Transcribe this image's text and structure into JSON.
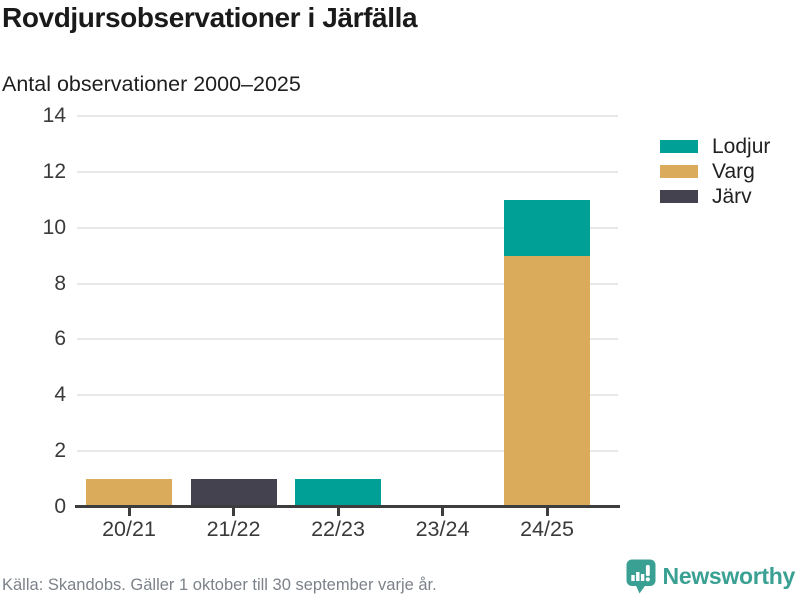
{
  "header": {
    "title": "Rovdjursobservationer i Järfälla",
    "subtitle": "Antal observationer 2000–2025"
  },
  "chart_data": {
    "type": "bar",
    "stacked": true,
    "title": "Rovdjursobservationer i Järfälla",
    "subtitle": "Antal observationer 2000–2025",
    "categories": [
      "20/21",
      "21/22",
      "22/23",
      "23/24",
      "24/25"
    ],
    "series": [
      {
        "name": "Lodjur",
        "color": "#00a096",
        "values": [
          0,
          0,
          1,
          0,
          2
        ]
      },
      {
        "name": "Varg",
        "color": "#d9ab5a",
        "values": [
          1,
          0,
          0,
          0,
          9
        ]
      },
      {
        "name": "Järv",
        "color": "#454250",
        "values": [
          0,
          1,
          0,
          0,
          0
        ]
      }
    ],
    "stack_order": [
      "Varg",
      "Järv",
      "Lodjur"
    ],
    "totals": [
      1,
      1,
      1,
      0,
      11
    ],
    "xlabel": "",
    "ylabel": "",
    "ylim": [
      0,
      14
    ],
    "yticks": [
      0,
      2,
      4,
      6,
      8,
      10,
      12,
      14
    ],
    "grid": "horizontal",
    "legend_position": "right"
  },
  "footer": {
    "source": "Källa: Skandobs. Gäller 1 oktober till 30 september varje år.",
    "brand": "Newsworthy"
  },
  "colors": {
    "lodjur_teal": "#00a096",
    "varg_gold": "#d9ab5a",
    "jarv_slate": "#454250",
    "brand_teal": "#3aa093",
    "axis": "#3d3d3d",
    "grid": "#e8e8e8",
    "text_dark": "#1a1a1a",
    "text_tick": "#3a3a3a",
    "text_muted": "#7c828a"
  }
}
